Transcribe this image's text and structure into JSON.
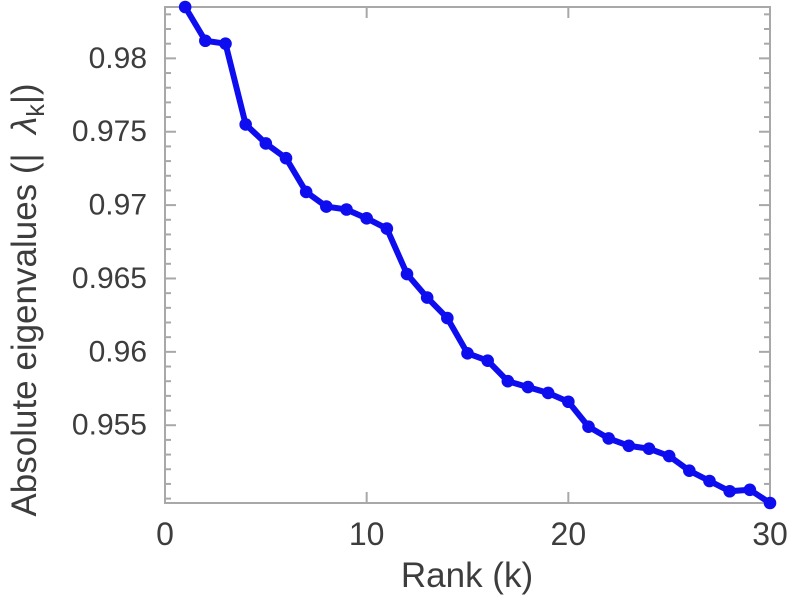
{
  "chart_data": {
    "type": "line",
    "title": "",
    "xlabel": "Rank (k)",
    "ylabel": "Absolute eigenvalues (| λ_k |)",
    "ylabel_parts": {
      "prefix": "Absolute eigenvalues (|  ",
      "symbol": "λ",
      "subscript": "k",
      "suffix": "|)"
    },
    "series": [
      {
        "x": [
          1,
          2,
          3,
          4,
          5,
          6,
          7,
          8,
          9,
          10,
          11,
          12,
          13,
          14,
          15,
          16,
          17,
          18,
          19,
          20,
          21,
          22,
          23,
          24,
          25,
          26,
          27,
          28,
          29,
          30
        ],
        "values": [
          0.9835,
          0.9812,
          0.981,
          0.9755,
          0.9742,
          0.9732,
          0.9709,
          0.9699,
          0.9697,
          0.9691,
          0.9684,
          0.9653,
          0.9637,
          0.9623,
          0.9599,
          0.9594,
          0.958,
          0.9576,
          0.9572,
          0.9566,
          0.9549,
          0.9541,
          0.9536,
          0.9534,
          0.9529,
          0.9519,
          0.9512,
          0.9505,
          0.9506,
          0.9497
        ],
        "color": "#0d0df0",
        "marker": "circle"
      }
    ],
    "xlim": [
      0,
      30
    ],
    "ylim": [
      0.9497,
      0.9835
    ],
    "xticks": [
      0,
      10,
      20,
      30
    ],
    "xticklabels": [
      "0",
      "10",
      "20",
      "30"
    ],
    "yticks": [
      0.955,
      0.96,
      0.965,
      0.97,
      0.975,
      0.98
    ],
    "yticklabels": [
      "0.955",
      "0.96",
      "0.965",
      "0.97",
      "0.975",
      "0.98"
    ],
    "minor_ytick_step": 0.001,
    "grid": false,
    "legend": null,
    "box": true,
    "axis_color": "#a8a8a8",
    "text_color": "#3d3d3d",
    "background": "#ffffff"
  }
}
